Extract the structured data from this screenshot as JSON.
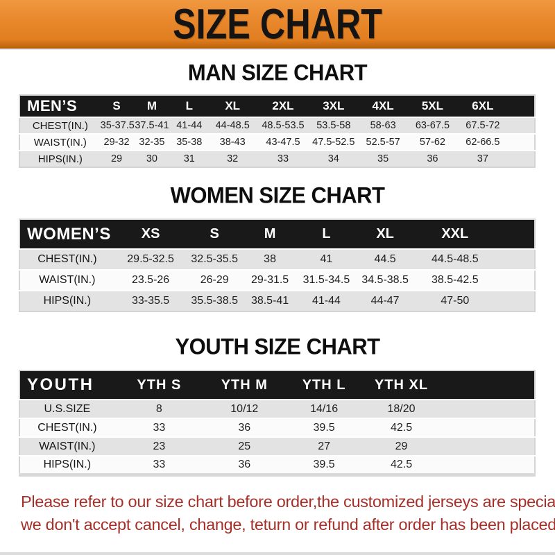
{
  "banner": {
    "title": "SIZE CHART"
  },
  "sections": [
    {
      "heading": "MAN SIZE CHART",
      "table": {
        "header_label": "MEN’S",
        "columns": [
          "S",
          "M",
          "L",
          "XL",
          "2XL",
          "3XL",
          "4XL",
          "5XL",
          "6XL"
        ],
        "rows": [
          {
            "label": "CHEST(IN.)",
            "values": [
              "35-37.5",
              "37.5-41",
              "41-44",
              "44-48.5",
              "48.5-53.5",
              "53.5-58",
              "58-63",
              "63-67.5",
              "67.5-72"
            ]
          },
          {
            "label": "WAIST(IN.)",
            "values": [
              "29-32",
              "32-35",
              "35-38",
              "38-43",
              "43-47.5",
              "47.5-52.5",
              "52.5-57",
              "57-62",
              "62-66.5"
            ]
          },
          {
            "label": "HIPS(IN.)",
            "values": [
              "29",
              "30",
              "31",
              "32",
              "33",
              "34",
              "35",
              "36",
              "37"
            ]
          }
        ]
      }
    },
    {
      "heading": "WOMEN SIZE CHART",
      "table": {
        "header_label": "WOMEN’S",
        "columns": [
          "XS",
          "S",
          "M",
          "L",
          "XL",
          "XXL"
        ],
        "rows": [
          {
            "label": "CHEST(IN.)",
            "values": [
              "29.5-32.5",
              "32.5-35.5",
              "38",
              "41",
              "44.5",
              "44.5-48.5"
            ]
          },
          {
            "label": "WAIST(IN.)",
            "values": [
              "23.5-26",
              "26-29",
              "29-31.5",
              "31.5-34.5",
              "34.5-38.5",
              "38.5-42.5"
            ]
          },
          {
            "label": "HIPS(IN.)",
            "values": [
              "33-35.5",
              "35.5-38.5",
              "38.5-41",
              "41-44",
              "44-47",
              "47-50"
            ]
          }
        ]
      }
    },
    {
      "heading": "YOUTH SIZE CHART",
      "table": {
        "header_label": "YOUTH",
        "columns": [
          "YTH S",
          "YTH M",
          "YTH L",
          "YTH XL"
        ],
        "rows": [
          {
            "label": "U.S.SIZE",
            "values": [
              "8",
              "10/12",
              "14/16",
              "18/20"
            ]
          },
          {
            "label": "CHEST(IN.)",
            "values": [
              "33",
              "36",
              "39.5",
              "42.5"
            ]
          },
          {
            "label": "WAIST(IN.)",
            "values": [
              "23",
              "25",
              "27",
              "29"
            ]
          },
          {
            "label": "HIPS(IN.)",
            "values": [
              "33",
              "36",
              "39.5",
              "42.5"
            ]
          }
        ]
      }
    }
  ],
  "footer": {
    "line1": "Please refer to our size chart before order,the customized jerseys are special products,",
    "line2": "we don't accept cancel, change, teturn or refund after order has been placed!"
  },
  "colors": {
    "banner_background": "#E8872B",
    "table_header_background": "#191919",
    "table_header_text": "#ffffff",
    "row_stripe_gray": "#E3E3E3",
    "disclaimer_red": "#A5302A"
  }
}
